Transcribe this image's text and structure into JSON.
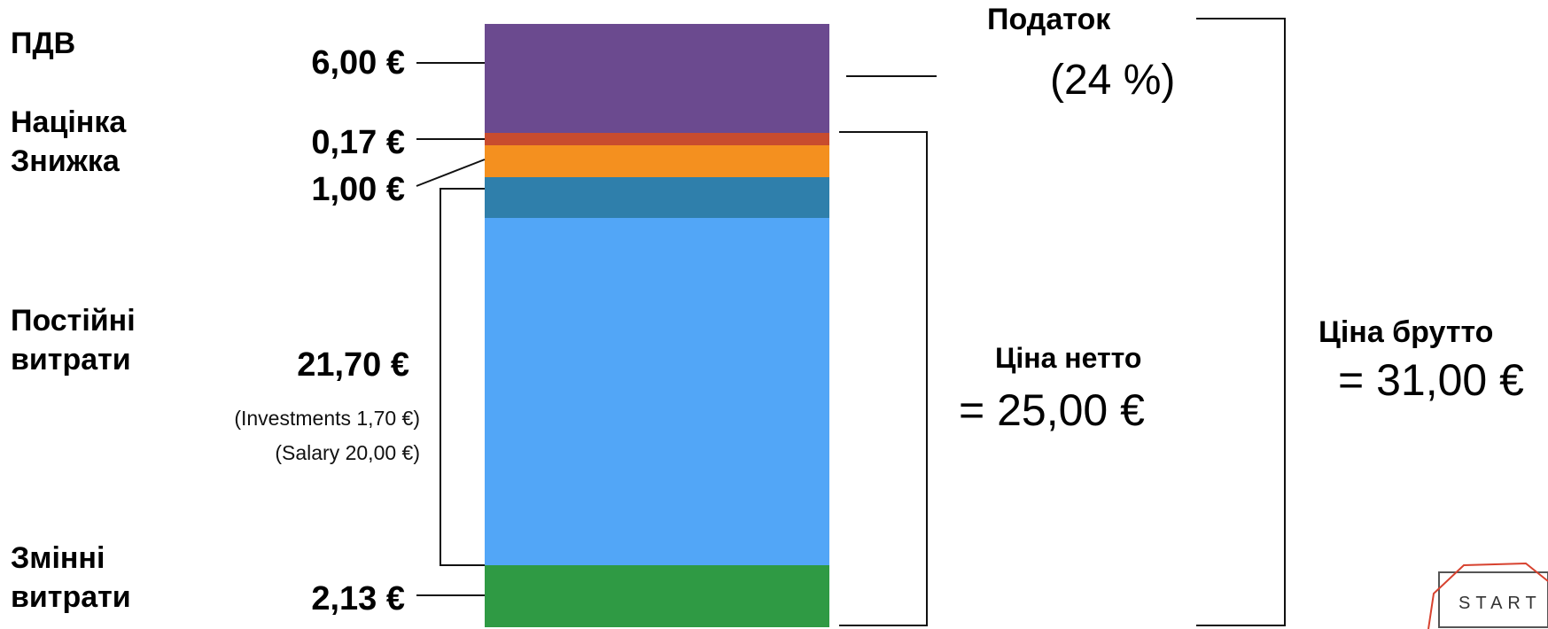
{
  "chart_data": {
    "type": "bar",
    "stacked": true,
    "segments": [
      {
        "name": "Змінні витрати",
        "value": 2.13,
        "label": "2,13 €",
        "color": "#2f9a44"
      },
      {
        "name": "Постійні витрати",
        "value": 21.7,
        "label": "21,70 €",
        "color": "#52a6f7"
      },
      {
        "name": "Знижка",
        "value": 1.0,
        "label": "1,00 €",
        "color": "#2f7fab"
      },
      {
        "name": "Знижка",
        "value": 1.0,
        "label": "",
        "color": "#f4901f"
      },
      {
        "name": "Націнка",
        "value": 0.17,
        "label": "0,17 €",
        "color": "#c84c2e"
      },
      {
        "name": "ПДВ",
        "value": 6.0,
        "label": "6,00 €",
        "color": "#6b4a8f"
      }
    ],
    "categories_left": [
      {
        "lines": [
          "ПДВ"
        ]
      },
      {
        "lines": [
          "Націнка",
          "Знижка"
        ]
      },
      {
        "lines": [
          "Постійні",
          "витрати"
        ]
      },
      {
        "lines": [
          "Змінні",
          "витрати"
        ]
      }
    ],
    "value_labels": {
      "vat": "6,00 €",
      "markup": "0,17 €",
      "discount": "1,00 €",
      "fixed": "21,70 €",
      "variable": "2,13 €"
    },
    "fixed_notes": [
      "(Investments 1,70 €)",
      "(Salary 20,00 €)"
    ],
    "tax": {
      "label": "Податок",
      "rate": "(24 %)"
    },
    "net_price": {
      "label": "Ціна нетто",
      "value": "= 25,00 €"
    },
    "gross_price": {
      "label": "Ціна брутто",
      "value": "= 31,00 €"
    }
  },
  "logo": {
    "text": "START"
  },
  "colors": {
    "logo_red": "#d7422f",
    "logo_gray": "#555555"
  }
}
